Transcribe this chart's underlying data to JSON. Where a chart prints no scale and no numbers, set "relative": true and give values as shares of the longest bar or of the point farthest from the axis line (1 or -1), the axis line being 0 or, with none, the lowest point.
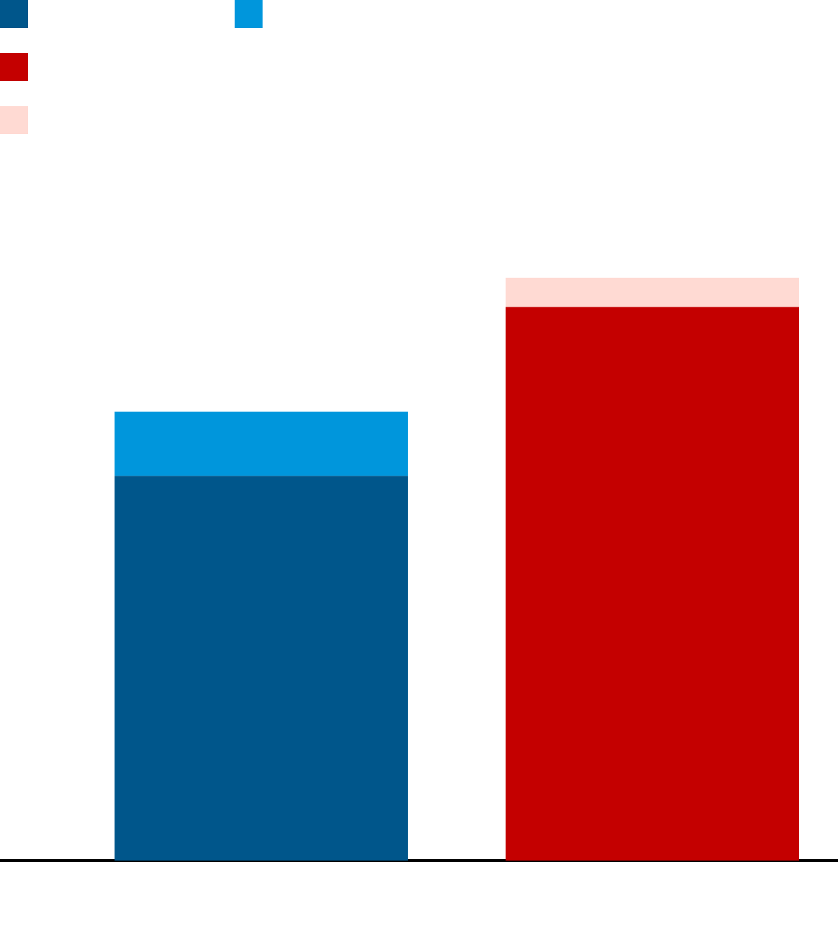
{
  "chart_data": {
    "type": "bar",
    "stacked": true,
    "relative": true,
    "categories": [
      null,
      null
    ],
    "series": [
      {
        "color": "#00568b",
        "values": [
          0.66,
          0
        ]
      },
      {
        "color": "#0096dc",
        "values": [
          0.11,
          0
        ]
      },
      {
        "color": "#c40000",
        "values": [
          0,
          0.95
        ]
      },
      {
        "color": "#ffdad3",
        "values": [
          0,
          0.05
        ]
      }
    ]
  }
}
